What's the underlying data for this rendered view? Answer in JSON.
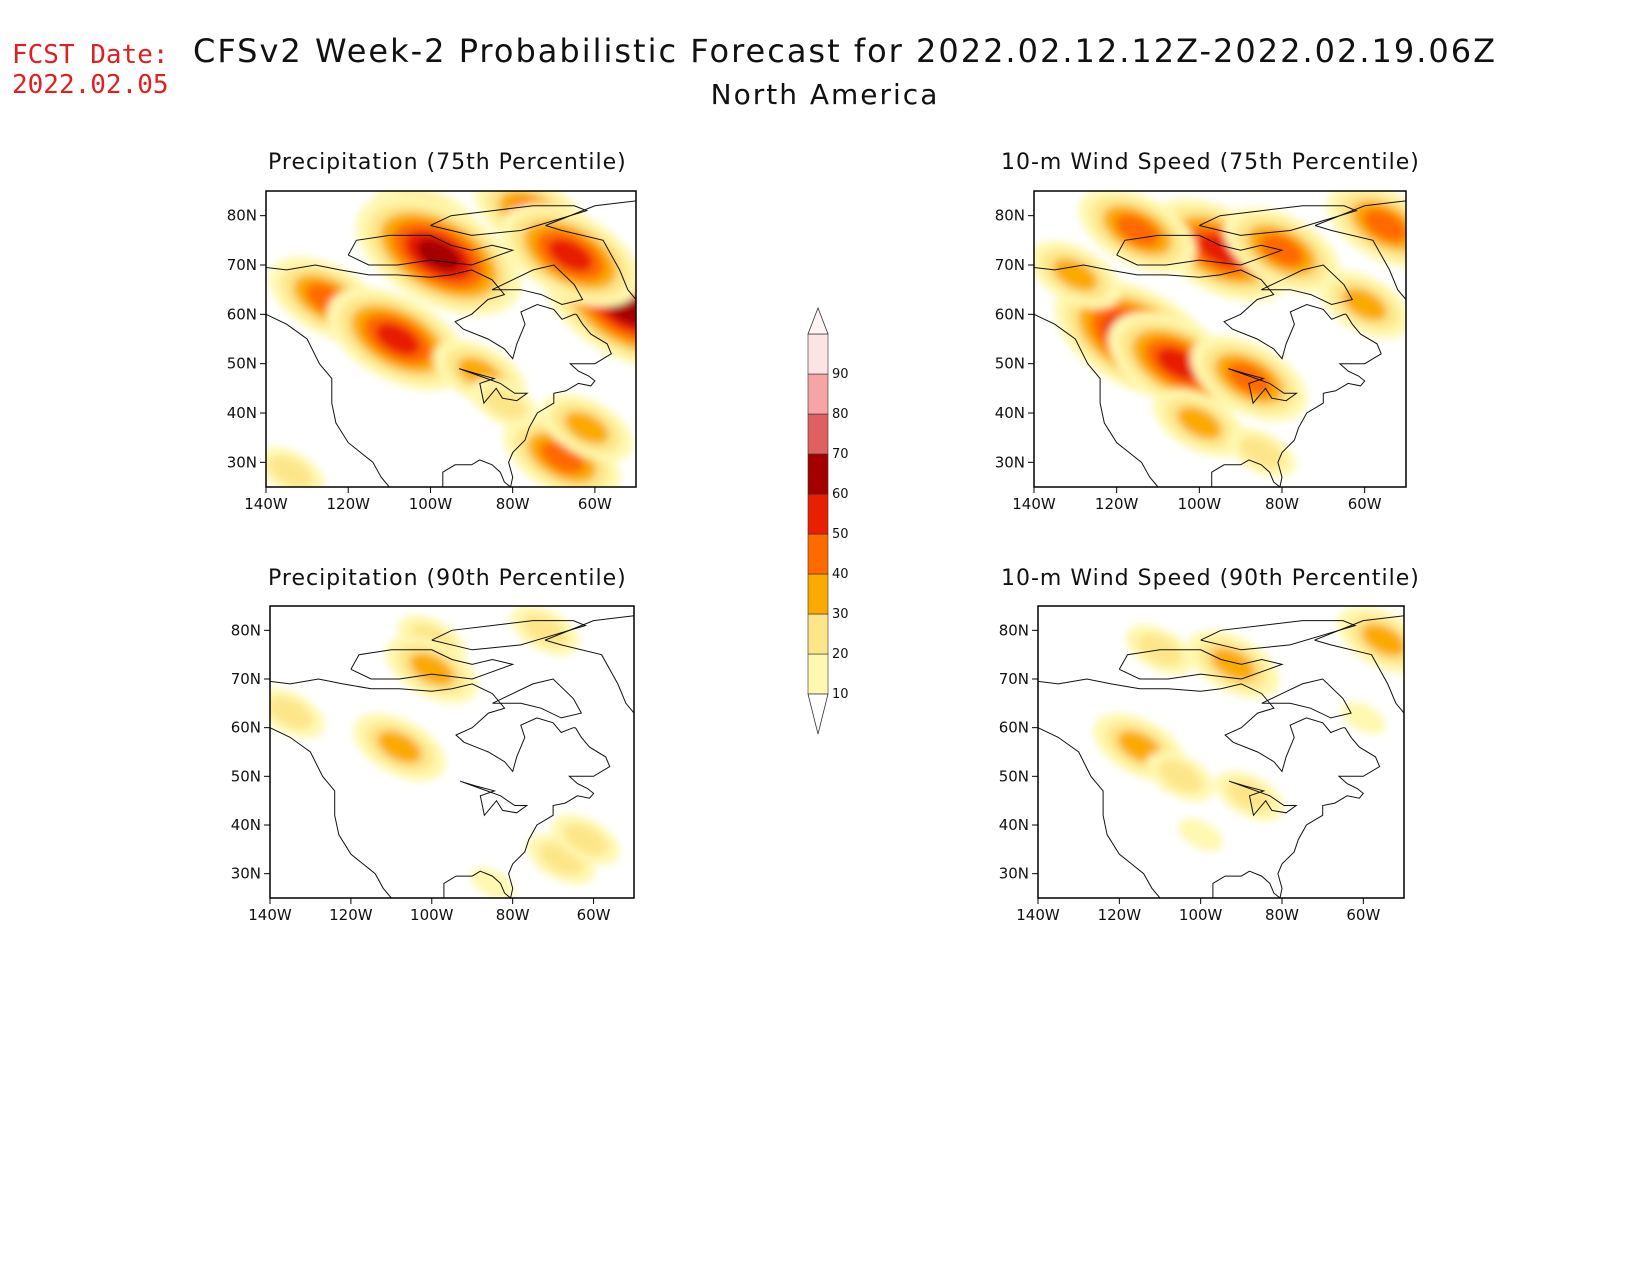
{
  "header": {
    "fcst_line1": "FCST Date:",
    "fcst_line2": "2022.02.05",
    "title": "CFSv2 Week-2 Probabilistic Forecast for 2022.02.12.12Z-2022.02.19.06Z",
    "subtitle": "North America",
    "fcst_color": "#e02020"
  },
  "axes": {
    "lat_labels": [
      "80N",
      "70N",
      "60N",
      "50N",
      "40N",
      "30N"
    ],
    "lat_values": [
      80,
      70,
      60,
      50,
      40,
      30
    ],
    "lon_labels": [
      "140W",
      "120W",
      "100W",
      "80W",
      "60W"
    ],
    "lon_values": [
      -140,
      -120,
      -100,
      -80,
      -60
    ],
    "lat_range": [
      25,
      85
    ],
    "lon_range": [
      -140,
      -50
    ]
  },
  "colorbar": {
    "levels": [
      "10",
      "20",
      "30",
      "40",
      "50",
      "60",
      "70",
      "80",
      "90"
    ],
    "colors": [
      "#fff8b0",
      "#fde68a",
      "#fbaa00",
      "#fe6a00",
      "#e81f00",
      "#a50000",
      "#e06060",
      "#f5a5a5",
      "#fde4e4"
    ]
  },
  "panels": [
    {
      "id": "precip-75",
      "title": "Precipitation (75th Percentile)",
      "blobs": [
        {
          "lon": -100,
          "lat": 78,
          "level": 40
        },
        {
          "lon": -75,
          "lat": 80,
          "level": 40
        },
        {
          "lon": -125,
          "lat": 63,
          "level": 40
        },
        {
          "lon": -108,
          "lat": 55,
          "level": 50
        },
        {
          "lon": -98,
          "lat": 72,
          "level": 60
        },
        {
          "lon": -52,
          "lat": 61,
          "level": 60
        },
        {
          "lon": -68,
          "lat": 31,
          "level": 40
        },
        {
          "lon": -62,
          "lat": 37,
          "level": 30
        },
        {
          "lon": -88,
          "lat": 48,
          "level": 30
        },
        {
          "lon": -134,
          "lat": 28,
          "level": 20
        },
        {
          "lon": -66,
          "lat": 72,
          "level": 50
        },
        {
          "lon": -82,
          "lat": 42,
          "level": 20
        }
      ]
    },
    {
      "id": "wind-75",
      "title": "10-m Wind Speed (75th Percentile)",
      "blobs": [
        {
          "lon": -95,
          "lat": 73,
          "level": 50
        },
        {
          "lon": -80,
          "lat": 73,
          "level": 40
        },
        {
          "lon": -115,
          "lat": 77,
          "level": 40
        },
        {
          "lon": -115,
          "lat": 55,
          "level": 60
        },
        {
          "lon": -105,
          "lat": 50,
          "level": 50
        },
        {
          "lon": -88,
          "lat": 47,
          "level": 40
        },
        {
          "lon": -55,
          "lat": 78,
          "level": 40
        },
        {
          "lon": -130,
          "lat": 68,
          "level": 30
        },
        {
          "lon": -100,
          "lat": 38,
          "level": 30
        },
        {
          "lon": -60,
          "lat": 62,
          "level": 30
        },
        {
          "lon": -85,
          "lat": 32,
          "level": 20
        }
      ]
    },
    {
      "id": "precip-90",
      "title": "Precipitation (90th Percentile)",
      "blobs": [
        {
          "lon": -100,
          "lat": 78,
          "level": 20
        },
        {
          "lon": -100,
          "lat": 72,
          "level": 30
        },
        {
          "lon": -108,
          "lat": 56,
          "level": 30
        },
        {
          "lon": -135,
          "lat": 63,
          "level": 20
        },
        {
          "lon": -68,
          "lat": 33,
          "level": 20
        },
        {
          "lon": -62,
          "lat": 37,
          "level": 20
        },
        {
          "lon": -85,
          "lat": 28,
          "level": 10
        },
        {
          "lon": -72,
          "lat": 80,
          "level": 20
        }
      ]
    },
    {
      "id": "wind-90",
      "title": "10-m Wind Speed (90th Percentile)",
      "blobs": [
        {
          "lon": -92,
          "lat": 73,
          "level": 30
        },
        {
          "lon": -110,
          "lat": 76,
          "level": 20
        },
        {
          "lon": -115,
          "lat": 56,
          "level": 30
        },
        {
          "lon": -105,
          "lat": 50,
          "level": 20
        },
        {
          "lon": -88,
          "lat": 46,
          "level": 20
        },
        {
          "lon": -55,
          "lat": 78,
          "level": 30
        },
        {
          "lon": -100,
          "lat": 38,
          "level": 10
        },
        {
          "lon": -60,
          "lat": 62,
          "level": 10
        }
      ]
    }
  ]
}
